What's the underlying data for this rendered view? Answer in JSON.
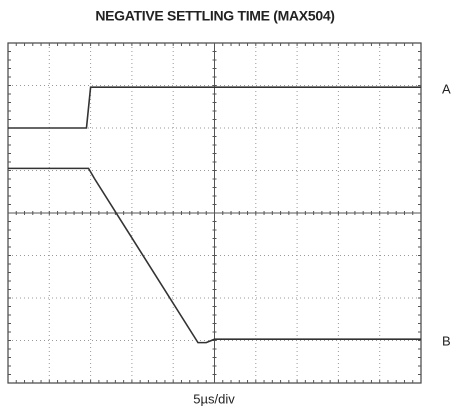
{
  "chart_data": {
    "type": "line",
    "title": "NEGATIVE SETTLING TIME (MAX504)",
    "x_label": "5µs/div",
    "xlim": [
      0,
      10
    ],
    "ylim": [
      0,
      8
    ],
    "grid": true,
    "series": [
      {
        "name": "A",
        "color": "#333333",
        "x": [
          0,
          1.9,
          2.0,
          10
        ],
        "values": [
          6.0,
          6.0,
          6.96,
          6.96
        ]
      },
      {
        "name": "B",
        "color": "#333333",
        "x": [
          0,
          1.95,
          2.1,
          4.6,
          4.8,
          5.0,
          10
        ],
        "values": [
          5.05,
          5.05,
          4.8,
          0.95,
          0.95,
          1.03,
          1.03
        ]
      }
    ]
  }
}
